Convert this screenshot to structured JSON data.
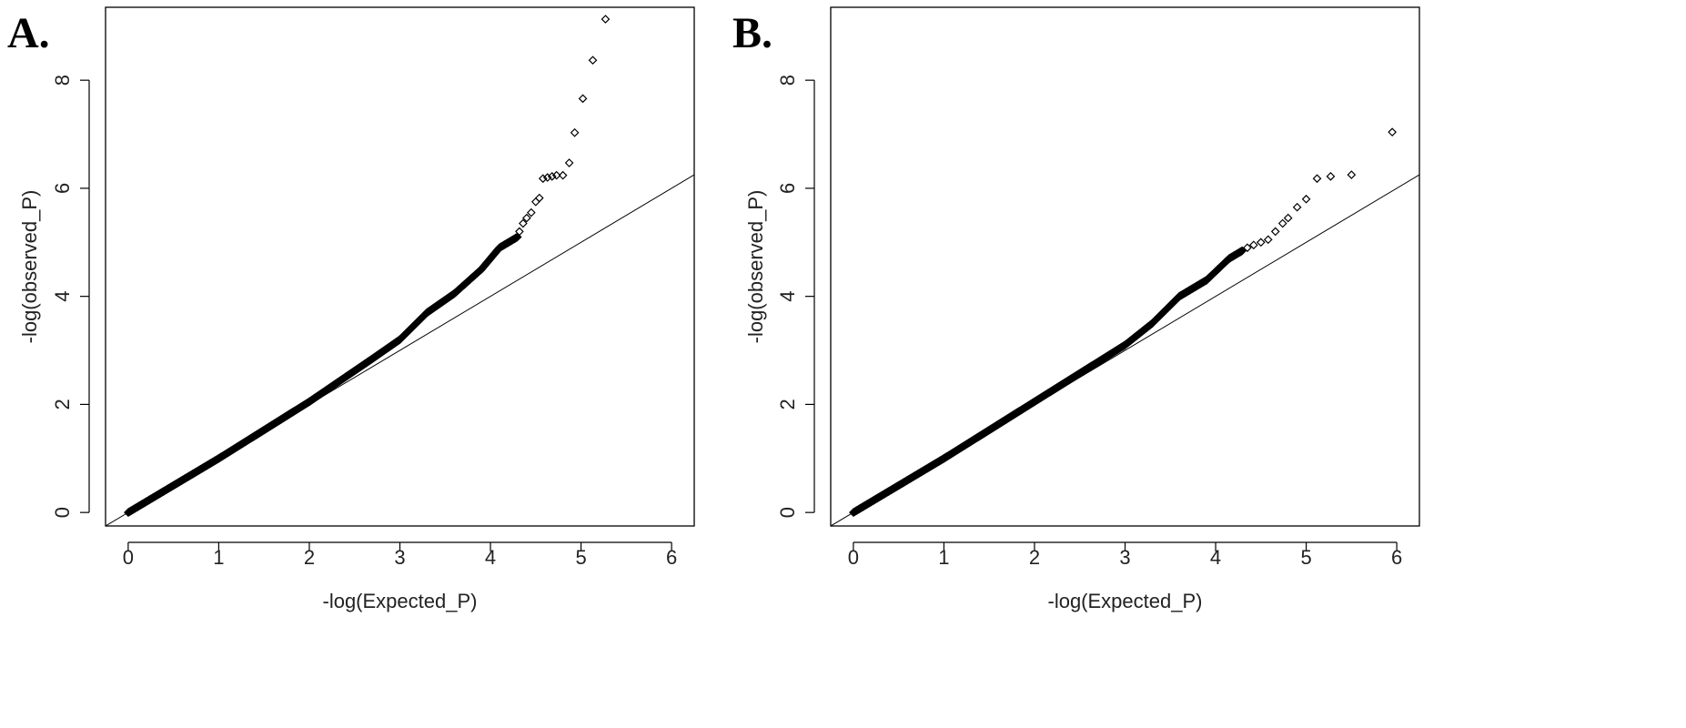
{
  "chart_data": [
    {
      "type": "scatter",
      "panel_label": "A.",
      "xlabel": "-log(Expected_P)",
      "ylabel": "-log(observed_P)",
      "xlim": [
        -0.25,
        6.25
      ],
      "ylim": [
        -0.25,
        9.35
      ],
      "xticks": [
        0,
        1,
        2,
        3,
        4,
        5,
        6
      ],
      "yticks": [
        0,
        2,
        4,
        6,
        8
      ],
      "reference_line": "y = x",
      "marker": "open-diamond",
      "curve_anchors": [
        [
          0,
          0
        ],
        [
          1,
          1.0
        ],
        [
          2,
          2.05
        ],
        [
          2.7,
          2.85
        ],
        [
          3.0,
          3.2
        ],
        [
          3.3,
          3.7
        ],
        [
          3.6,
          4.05
        ],
        [
          3.9,
          4.5
        ],
        [
          4.1,
          4.9
        ],
        [
          4.3,
          5.1
        ]
      ],
      "curve_stride": 0.006,
      "tail_points": [
        [
          4.32,
          5.2
        ],
        [
          4.36,
          5.35
        ],
        [
          4.4,
          5.45
        ],
        [
          4.45,
          5.55
        ],
        [
          4.5,
          5.75
        ],
        [
          4.54,
          5.82
        ],
        [
          4.58,
          6.18
        ],
        [
          4.63,
          6.2
        ],
        [
          4.68,
          6.22
        ],
        [
          4.73,
          6.24
        ],
        [
          4.8,
          6.24
        ],
        [
          4.87,
          6.47
        ],
        [
          4.93,
          7.03
        ],
        [
          5.02,
          7.66
        ],
        [
          5.13,
          8.37
        ],
        [
          5.27,
          9.13
        ]
      ]
    },
    {
      "type": "scatter",
      "panel_label": "B.",
      "xlabel": "-log(Expected_P)",
      "ylabel": "-log(observed_P)",
      "xlim": [
        -0.25,
        6.25
      ],
      "ylim": [
        -0.25,
        9.35
      ],
      "xticks": [
        0,
        1,
        2,
        3,
        4,
        5,
        6
      ],
      "yticks": [
        0,
        2,
        4,
        6,
        8
      ],
      "reference_line": "y = x",
      "marker": "open-diamond",
      "curve_anchors": [
        [
          0,
          0
        ],
        [
          1,
          1.0
        ],
        [
          2,
          2.05
        ],
        [
          3.0,
          3.1
        ],
        [
          3.3,
          3.5
        ],
        [
          3.6,
          4.0
        ],
        [
          3.9,
          4.3
        ],
        [
          4.15,
          4.7
        ],
        [
          4.3,
          4.85
        ]
      ],
      "curve_stride": 0.006,
      "tail_points": [
        [
          4.35,
          4.9
        ],
        [
          4.42,
          4.95
        ],
        [
          4.5,
          5.0
        ],
        [
          4.58,
          5.05
        ],
        [
          4.66,
          5.2
        ],
        [
          4.74,
          5.35
        ],
        [
          4.8,
          5.45
        ],
        [
          4.9,
          5.65
        ],
        [
          5.0,
          5.8
        ],
        [
          5.12,
          6.18
        ],
        [
          5.27,
          6.22
        ],
        [
          5.5,
          6.25
        ],
        [
          5.95,
          7.04
        ]
      ]
    }
  ]
}
